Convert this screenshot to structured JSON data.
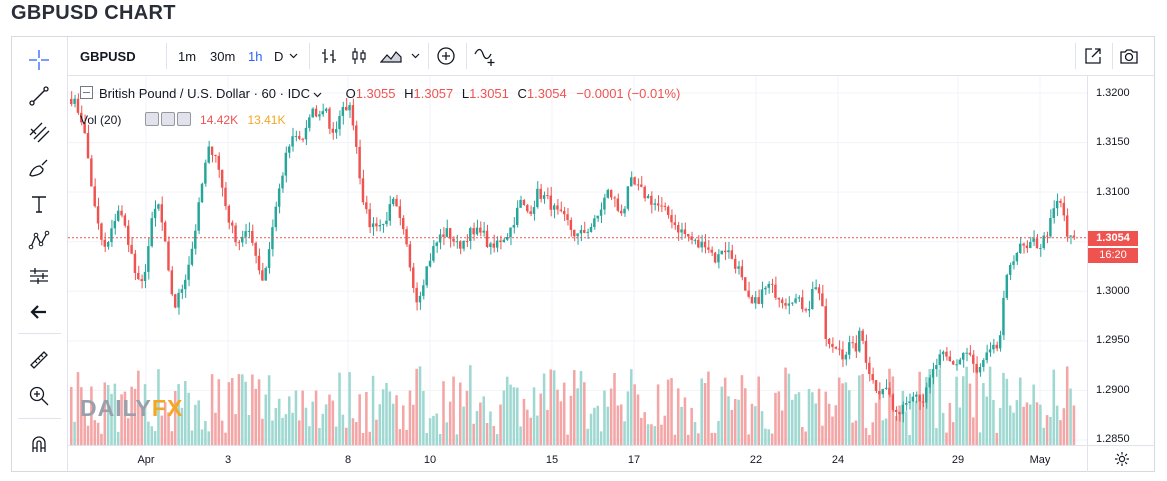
{
  "page": {
    "title": "GBPUSD CHART"
  },
  "toolbar": {
    "symbol": "GBPUSD",
    "intervals": [
      "1m",
      "30m",
      "1h",
      "D"
    ],
    "active_interval": "1h",
    "accent_color": "#2962ff"
  },
  "legend": {
    "instrument": "British Pound / U.S. Dollar · 60 · IDC",
    "open_key": "O",
    "open": "1.3055",
    "high_key": "H",
    "high": "1.3057",
    "low_key": "L",
    "low": "1.3051",
    "close_key": "C",
    "close": "1.3054",
    "change": "−0.0001 (−0.01%)",
    "volume_label": "Vol (20)",
    "volume_value": "14.42K",
    "volume_ma": "13.41K"
  },
  "price_axis": {
    "labels": [
      "1.3200",
      "1.3150",
      "1.3100",
      "1.3050",
      "1.3000",
      "1.2950",
      "1.2900",
      "1.2850"
    ],
    "current_price": "1.3054",
    "countdown": "16:20"
  },
  "time_axis": {
    "labels": [
      "Apr",
      "3",
      "8",
      "10",
      "15",
      "17",
      "22",
      "24",
      "29",
      "May"
    ]
  },
  "watermark": {
    "part1": "DAILY",
    "part2": "FX"
  },
  "colors": {
    "up": "#26a69a",
    "down": "#ef5350",
    "volume_up": "#9fd8d1",
    "volume_down": "#f4a5a5",
    "watermark_fx": "#f5a623",
    "watermark_daily": "#9aa0ab"
  },
  "icons": {
    "left_toolbar": [
      "crosshair-icon",
      "trend-line-icon",
      "fib-tool-icon",
      "brush-icon",
      "text-icon",
      "pattern-icon",
      "forecast-icon",
      "back-arrow-icon",
      "ruler-icon",
      "zoom-in-icon",
      "magnet-icon"
    ],
    "top_toolbar": [
      "bar-style-icon",
      "candle-style-icon",
      "area-style-icon",
      "indicators-icon",
      "compare-icon",
      "fullscreen-icon",
      "snapshot-icon"
    ],
    "axis": [
      "settings-gear-icon"
    ]
  },
  "chart_data": {
    "type": "candlestick",
    "title": "British Pound / U.S. Dollar · 60 · IDC",
    "xlabel": "",
    "ylabel": "",
    "ylim": [
      1.2845,
      1.3215
    ],
    "x_ticks": [
      "Apr",
      "3",
      "8",
      "10",
      "15",
      "17",
      "22",
      "24",
      "29",
      "May"
    ],
    "y_ticks": [
      1.285,
      1.29,
      1.295,
      1.3,
      1.305,
      1.31,
      1.315,
      1.32
    ],
    "current_price_line": 1.3054,
    "series": [
      {
        "name": "Price path (approximate hourly closes)",
        "values": [
          1.3195,
          1.3185,
          1.317,
          1.313,
          1.3085,
          1.3055,
          1.304,
          1.306,
          1.3085,
          1.307,
          1.305,
          1.302,
          1.3,
          1.303,
          1.307,
          1.309,
          1.306,
          1.301,
          1.2985,
          1.3,
          1.302,
          1.3045,
          1.308,
          1.312,
          1.3145,
          1.314,
          1.311,
          1.308,
          1.306,
          1.305,
          1.306,
          1.3055,
          1.304,
          1.301,
          1.303,
          1.307,
          1.31,
          1.313,
          1.315,
          1.3155,
          1.315,
          1.317,
          1.318,
          1.3175,
          1.319,
          1.316,
          1.3165,
          1.318,
          1.319,
          1.317,
          1.312,
          1.308,
          1.3065,
          1.307,
          1.3065,
          1.308,
          1.309,
          1.307,
          1.305,
          1.302,
          1.299,
          1.301,
          1.303,
          1.3045,
          1.3055,
          1.306,
          1.3055,
          1.3045,
          1.305,
          1.306,
          1.3055,
          1.3065,
          1.305,
          1.304,
          1.305,
          1.3055,
          1.306,
          1.3075,
          1.309,
          1.308,
          1.3085,
          1.31,
          1.3095,
          1.309,
          1.308,
          1.3075,
          1.307,
          1.306,
          1.3055,
          1.306,
          1.3065,
          1.307,
          1.3085,
          1.31,
          1.3095,
          1.308,
          1.3085,
          1.311,
          1.3105,
          1.31,
          1.3095,
          1.309,
          1.3085,
          1.308,
          1.3075,
          1.3065,
          1.306,
          1.3055,
          1.305,
          1.3045,
          1.305,
          1.304,
          1.303,
          1.3045,
          1.304,
          1.303,
          1.302,
          1.2995,
          1.2985,
          1.299,
          1.3,
          1.3005,
          1.3,
          1.2995,
          1.299,
          1.2995,
          1.299,
          1.2985,
          1.2985,
          1.301,
          1.2995,
          1.295,
          1.294,
          1.2945,
          1.2935,
          1.2945,
          1.294,
          1.296,
          1.293,
          1.291,
          1.29,
          1.2905,
          1.2895,
          1.287,
          1.2885,
          1.289,
          1.29,
          1.2895,
          1.289,
          1.291,
          1.2925,
          1.2935,
          1.293,
          1.2925,
          1.293,
          1.294,
          1.2935,
          1.2915,
          1.2925,
          1.2935,
          1.294,
          1.2945,
          1.3,
          1.303,
          1.304,
          1.3045,
          1.304,
          1.305,
          1.3045,
          1.3055,
          1.307,
          1.309,
          1.3085,
          1.305,
          1.3054
        ]
      }
    ]
  }
}
